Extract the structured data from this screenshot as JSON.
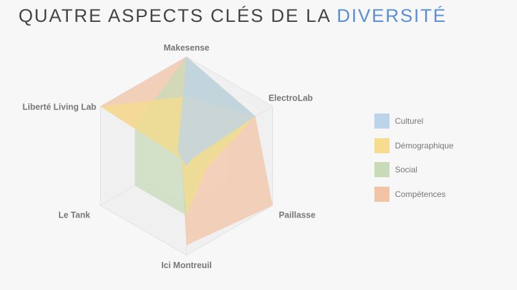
{
  "title": {
    "main": "QUATRE ASPECTS CLÉS DE LA",
    "highlight": "DIVERSITÉ"
  },
  "chart_data": {
    "type": "radar",
    "axes": [
      "Makesense",
      "ElectroLab",
      "Paillasse",
      "Ici Montreuil",
      "Le Tank",
      "Liberté Living Lab"
    ],
    "max": 5,
    "series": [
      {
        "name": "Culturel",
        "color": "#bcd4ea",
        "values": [
          5,
          4,
          0.3,
          0.5,
          0.3,
          0.5
        ]
      },
      {
        "name": "Démographique",
        "color": "#f5dc8e",
        "values": [
          3,
          4,
          1.2,
          3,
          0.3,
          5
        ]
      },
      {
        "name": "Social",
        "color": "#c7dbb8",
        "values": [
          5,
          4,
          1,
          3,
          3,
          3
        ]
      },
      {
        "name": "Compétences",
        "color": "#f2c4a6",
        "values": [
          5,
          4,
          5,
          4.5,
          0.3,
          5
        ]
      }
    ]
  }
}
